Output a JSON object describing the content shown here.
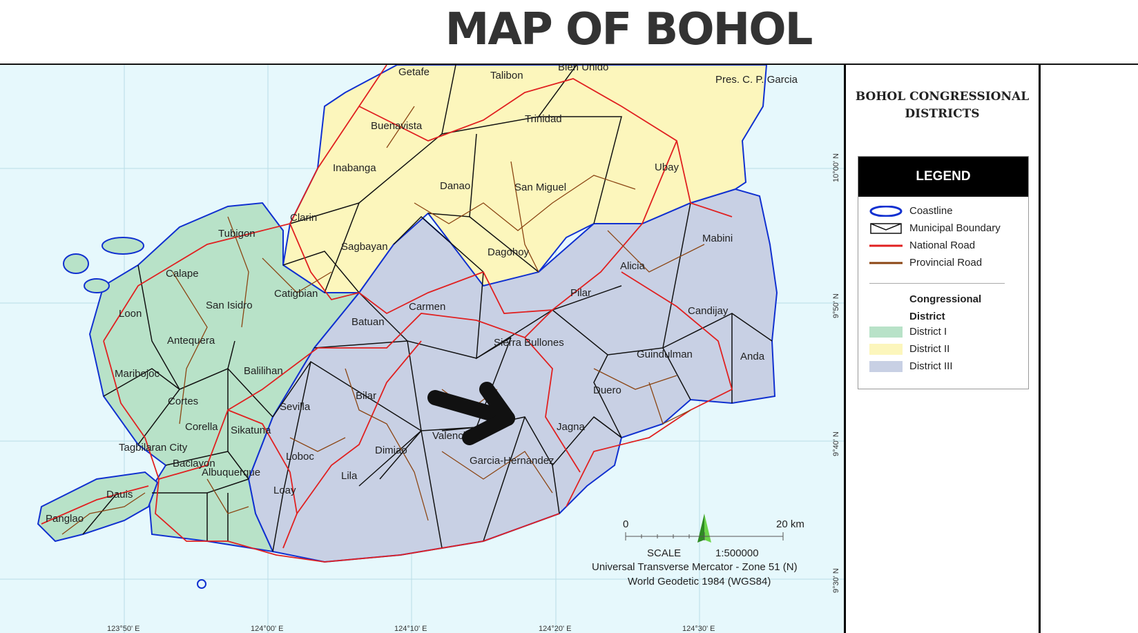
{
  "title": "MAP OF BOHOL",
  "panel": {
    "heading_line1": "BOHOL CONGRESSIONAL",
    "heading_line2": "DISTRICTS",
    "legend_title": "LEGEND",
    "items": [
      {
        "label": "Coastline",
        "symbol": "ellipse-outline",
        "color": "#1030d0"
      },
      {
        "label": "Municipal Boundary",
        "symbol": "envelope-outline",
        "color": "#111111"
      },
      {
        "label": "National Road",
        "symbol": "line",
        "color": "#e02020"
      },
      {
        "label": "Provincial Road",
        "symbol": "line",
        "color": "#8b4513"
      }
    ],
    "district_heading_line1": "Congressional",
    "district_heading_line2": "District",
    "districts": [
      {
        "label": "District I",
        "color": "#b8e2c8"
      },
      {
        "label": "District II",
        "color": "#fcf6bc"
      },
      {
        "label": "District III",
        "color": "#c8d0e4"
      }
    ]
  },
  "map": {
    "water_color": "#e6f8fc",
    "coast_color": "#1030d0",
    "municipalities": [
      "Getafe",
      "Talibon",
      "Bien Unido",
      "Pres. C. P. Garcia",
      "Trinidad",
      "Buenavista",
      "Inabanga",
      "Danao",
      "San Miguel",
      "Ubay",
      "Clarin",
      "Tubigon",
      "Sagbayan",
      "Dagohoy",
      "Mabini",
      "Alicia",
      "Calape",
      "San Isidro",
      "Catigbian",
      "Carmen",
      "Pilar",
      "Candijay",
      "Loon",
      "Batuan",
      "Sierra Bullones",
      "Antequera",
      "Guindulman",
      "Anda",
      "Maribojoc",
      "Balilihan",
      "Duero",
      "Bilar",
      "Cortes",
      "Sevilla",
      "Jagna",
      "Valencia",
      "Corella",
      "Sikatuna",
      "Dimiao",
      "Tagbilaran City",
      "Garcia-Hernandez",
      "Baclayon",
      "Loboc",
      "Albuquerque",
      "Lila",
      "Loay",
      "Dauis",
      "Panglao"
    ],
    "lat_labels": [
      "10°00' N",
      "9°50' N",
      "9°40' N",
      "9°30' N"
    ],
    "lon_labels": [
      "123°50' E",
      "124°00' E",
      "124°10' E",
      "124°20' E",
      "124°30' E"
    ],
    "scale": {
      "start": "0",
      "end": "20 km",
      "label": "SCALE",
      "ratio": "1:500000",
      "projection": "Universal Transverse Mercator - Zone 51 (N)",
      "datum": "World Geodetic 1984 (WGS84)"
    },
    "north_arrow_color": "#3aa82a",
    "pointer_arrow": "arrow-pointing-to-jagna"
  }
}
